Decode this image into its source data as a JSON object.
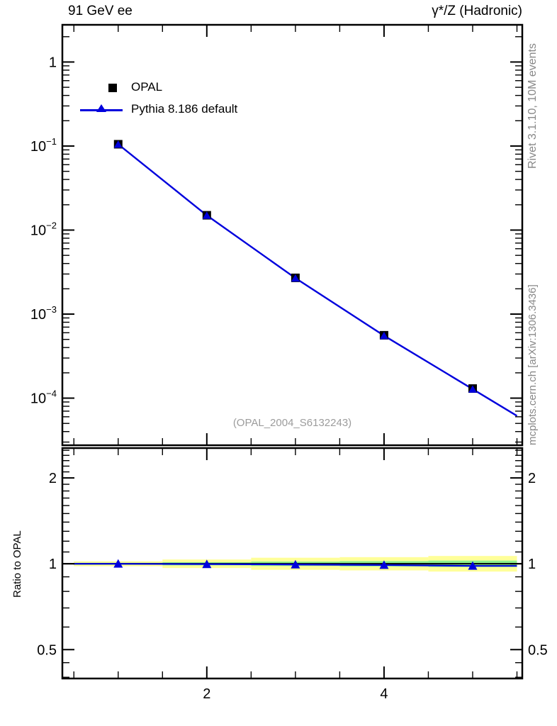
{
  "colors": {
    "mc_blue": "#0000dd",
    "band_yellow": "#ffff99",
    "band_green": "#8ef08e",
    "ref_black": "#000000",
    "note_gray": "#888888",
    "watermark_gray": "#9c9c9c"
  },
  "side_notes": {
    "top": "Rivet 3.1.10,  10M events",
    "bottom": "mcplots.cern.ch [arXiv:1306.3436]"
  },
  "chart_data": {
    "type": "line",
    "title_left": "91 GeV ee",
    "title_right": "γ*/Z (Hadronic)",
    "annotation": "(OPAL_2004_S6132243)",
    "grid": false,
    "legend_position": "top-left",
    "x": [
      1,
      2,
      3,
      4,
      5
    ],
    "xlim": [
      0.37,
      5.56
    ],
    "xticks": [
      {
        "v": 2,
        "label": "2"
      },
      {
        "v": 4,
        "label": "4"
      }
    ],
    "xtick_minor_step": 0.5,
    "main_panel": {
      "yscale": "log",
      "ylim": [
        2.75e-05,
        2.77
      ],
      "yticks": [
        {
          "v": 1,
          "mantissa": "1",
          "exponent": ""
        },
        {
          "v": 0.1,
          "mantissa": "10",
          "exponent": "−1"
        },
        {
          "v": 0.01,
          "mantissa": "10",
          "exponent": "−2"
        },
        {
          "v": 0.001,
          "mantissa": "10",
          "exponent": "−3"
        },
        {
          "v": 0.0001,
          "mantissa": "10",
          "exponent": "−4"
        }
      ],
      "series": [
        {
          "name": "OPAL",
          "marker": "square",
          "color": "#000000",
          "line": false,
          "y": [
            0.105,
            0.015,
            0.0027,
            0.00056,
            0.00013
          ]
        },
        {
          "name": "Pythia 8.186 default",
          "marker": "triangle",
          "color": "#0000dd",
          "line": true,
          "y": [
            0.105,
            0.01496,
            0.00268,
            0.000554,
            0.000128
          ]
        }
      ]
    },
    "ratio_panel": {
      "ylabel": "Ratio to OPAL",
      "yscale": "log",
      "ylim": [
        0.396,
        2.545
      ],
      "reference_line": 1,
      "yticks": [
        {
          "v": 2,
          "label": "2"
        },
        {
          "v": 1,
          "label": "1"
        },
        {
          "v": 0.5,
          "label": "0.5"
        }
      ],
      "ytick_minors": [
        0.4,
        0.45,
        0.6,
        0.7,
        0.8,
        0.9,
        1.1,
        1.2,
        1.3,
        1.4,
        1.5,
        1.6,
        1.7,
        1.8,
        1.9,
        2.1,
        2.2,
        2.3,
        2.4,
        2.5
      ],
      "ratio_values": [
        1.0,
        0.997,
        0.994,
        0.99,
        0.983
      ],
      "bands": {
        "bin_halfwidth": 0.5,
        "yellow_halfwidth": [
          0.02,
          0.035,
          0.05,
          0.055,
          0.065
        ],
        "green_halfwidth": [
          0.008,
          0.013,
          0.018,
          0.022,
          0.026
        ]
      }
    }
  }
}
